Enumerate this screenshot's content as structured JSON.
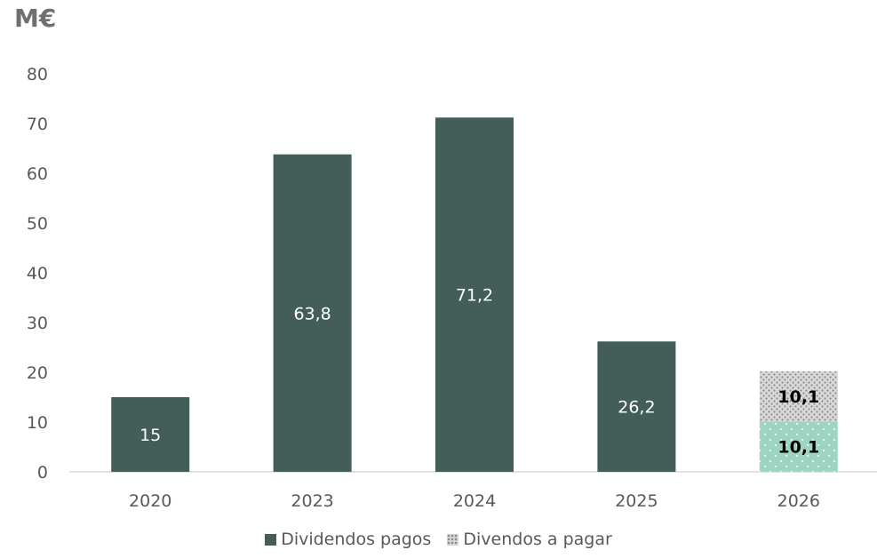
{
  "chart_data": {
    "type": "bar",
    "stacked": true,
    "ylabel": "M€",
    "ylim": [
      0,
      80
    ],
    "yticks": [
      0,
      10,
      20,
      30,
      40,
      50,
      60,
      70,
      80
    ],
    "categories": [
      "2020",
      "2023",
      "2024",
      "2025",
      "2026"
    ],
    "series": [
      {
        "name": "Dividendos pagos",
        "values": [
          15,
          63.8,
          71.2,
          26.2,
          10.1
        ],
        "labels": [
          "15",
          "63,8",
          "71,2",
          "26,2",
          "10,1"
        ],
        "color": "#435e58",
        "last_bar_color": "#9ed5c2"
      },
      {
        "name": "Divendos a pagar",
        "values": [
          0,
          0,
          0,
          0,
          10.1
        ],
        "labels": [
          "",
          "",
          "",
          "",
          "10,1"
        ],
        "color": "#d8d8d8",
        "pattern": "dots"
      }
    ],
    "grid": false,
    "legend": "bottom"
  }
}
